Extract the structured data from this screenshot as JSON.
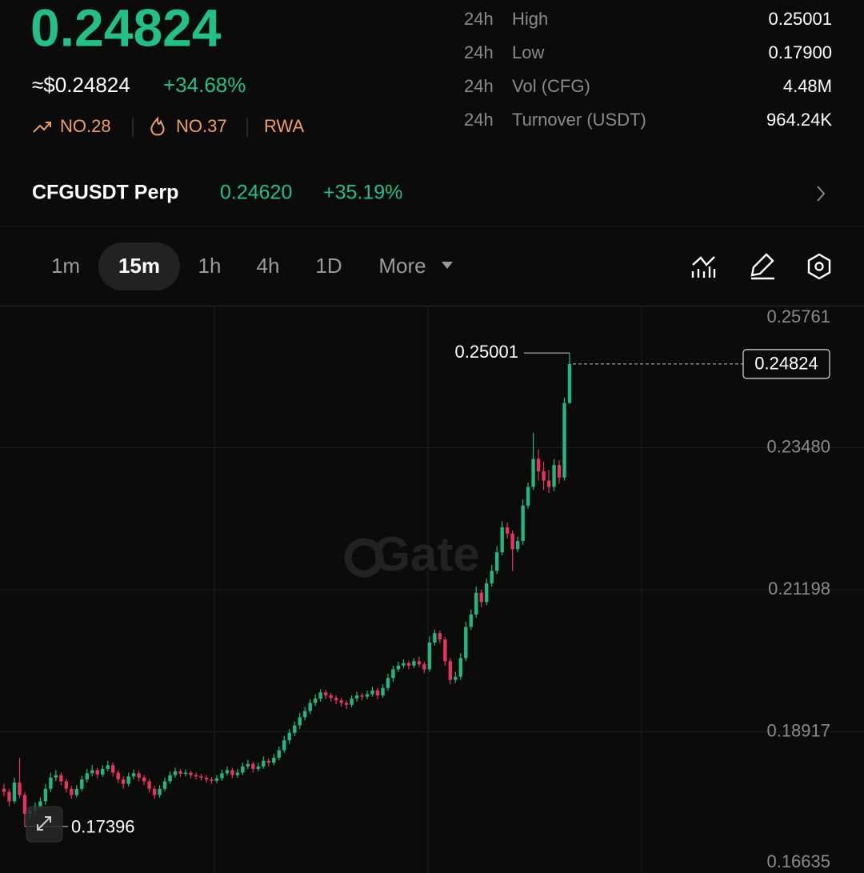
{
  "header": {
    "price": "0.24824",
    "usd_price": "≈$0.24824",
    "change": "+34.68%",
    "badges": [
      "NO.28",
      "NO.37",
      "RWA"
    ]
  },
  "stats": [
    {
      "period": "24h",
      "label": "High",
      "value": "0.25001"
    },
    {
      "period": "24h",
      "label": "Low",
      "value": "0.17900"
    },
    {
      "period": "24h",
      "label": "Vol (CFG)",
      "value": "4.48M"
    },
    {
      "period": "24h",
      "label": "Turnover (USDT)",
      "value": "964.24K"
    }
  ],
  "perp": {
    "symbol": "CFGUSDT Perp",
    "price": "0.24620",
    "change": "+35.19%"
  },
  "intervals": [
    "1m",
    "15m",
    "1h",
    "4h",
    "1D",
    "More"
  ],
  "active_interval": 1,
  "chart_data": {
    "type": "candlestick",
    "watermark": "Gate",
    "up_color": "#20b87f",
    "down_color": "#e8345c",
    "ylim": [
      0.16635,
      0.25761
    ],
    "yticks": [
      0.16635,
      0.18917,
      0.21198,
      {
        "value": 0.2348,
        "label": "0.23480"
      },
      0.25761
    ],
    "max_label": 0.25001,
    "min_label": 0.17396,
    "last_price": 0.24824,
    "candles": [
      [
        0.18,
        0.1808,
        0.1788,
        0.1795
      ],
      [
        0.1795,
        0.18,
        0.1772,
        0.178
      ],
      [
        0.178,
        0.1818,
        0.1776,
        0.181
      ],
      [
        0.181,
        0.185,
        0.1785,
        0.179
      ],
      [
        0.179,
        0.1795,
        0.17396,
        0.176
      ],
      [
        0.176,
        0.1772,
        0.1752,
        0.1765
      ],
      [
        0.1765,
        0.1778,
        0.1758,
        0.1772
      ],
      [
        0.1772,
        0.1786,
        0.1766,
        0.178
      ],
      [
        0.178,
        0.1808,
        0.1774,
        0.18
      ],
      [
        0.18,
        0.1826,
        0.1795,
        0.1818
      ],
      [
        0.1818,
        0.183,
        0.1812,
        0.1822
      ],
      [
        0.1822,
        0.1826,
        0.1806,
        0.1812
      ],
      [
        0.1812,
        0.1816,
        0.1794,
        0.18
      ],
      [
        0.18,
        0.1805,
        0.1784,
        0.179
      ],
      [
        0.179,
        0.1806,
        0.1786,
        0.18
      ],
      [
        0.18,
        0.1821,
        0.1796,
        0.1815
      ],
      [
        0.1815,
        0.1832,
        0.181,
        0.1825
      ],
      [
        0.1825,
        0.1838,
        0.182,
        0.183
      ],
      [
        0.183,
        0.1834,
        0.1817,
        0.1823
      ],
      [
        0.1823,
        0.1838,
        0.1819,
        0.1832
      ],
      [
        0.1832,
        0.1845,
        0.1828,
        0.1838
      ],
      [
        0.1838,
        0.1842,
        0.182,
        0.1826
      ],
      [
        0.1826,
        0.183,
        0.1809,
        0.1815
      ],
      [
        0.1815,
        0.182,
        0.18,
        0.1808
      ],
      [
        0.1808,
        0.1826,
        0.1804,
        0.182
      ],
      [
        0.182,
        0.1831,
        0.1815,
        0.1825
      ],
      [
        0.1825,
        0.1829,
        0.1812,
        0.1818
      ],
      [
        0.1818,
        0.1822,
        0.1806,
        0.1812
      ],
      [
        0.1812,
        0.1816,
        0.1794,
        0.18
      ],
      [
        0.18,
        0.1805,
        0.1784,
        0.179
      ],
      [
        0.179,
        0.1806,
        0.1786,
        0.18
      ],
      [
        0.18,
        0.1818,
        0.1796,
        0.1812
      ],
      [
        0.1812,
        0.1828,
        0.1808,
        0.1822
      ],
      [
        0.1822,
        0.1834,
        0.1818,
        0.1828
      ],
      [
        0.1828,
        0.1832,
        0.1819,
        0.1824
      ],
      [
        0.1824,
        0.1831,
        0.182,
        0.1826
      ],
      [
        0.1826,
        0.1829,
        0.1817,
        0.1822
      ],
      [
        0.1822,
        0.1826,
        0.1815,
        0.182
      ],
      [
        0.182,
        0.1824,
        0.1813,
        0.1818
      ],
      [
        0.1818,
        0.1822,
        0.181,
        0.1815
      ],
      [
        0.1815,
        0.1819,
        0.1808,
        0.1813
      ],
      [
        0.1813,
        0.1822,
        0.1809,
        0.1817
      ],
      [
        0.1817,
        0.1831,
        0.1813,
        0.1825
      ],
      [
        0.1825,
        0.1836,
        0.1821,
        0.183
      ],
      [
        0.183,
        0.1834,
        0.1817,
        0.1822
      ],
      [
        0.1822,
        0.1832,
        0.1818,
        0.1826
      ],
      [
        0.1826,
        0.1842,
        0.1822,
        0.1836
      ],
      [
        0.1836,
        0.1846,
        0.1832,
        0.184
      ],
      [
        0.184,
        0.1844,
        0.1826,
        0.1832
      ],
      [
        0.1832,
        0.1842,
        0.1828,
        0.1836
      ],
      [
        0.1836,
        0.1852,
        0.1832,
        0.1845
      ],
      [
        0.1845,
        0.1849,
        0.1836,
        0.1842
      ],
      [
        0.1842,
        0.1856,
        0.1838,
        0.185
      ],
      [
        0.185,
        0.1868,
        0.1846,
        0.1862
      ],
      [
        0.1862,
        0.1885,
        0.1858,
        0.1878
      ],
      [
        0.1878,
        0.1896,
        0.1872,
        0.189
      ],
      [
        0.189,
        0.1908,
        0.1885,
        0.1902
      ],
      [
        0.1902,
        0.1922,
        0.1896,
        0.1915
      ],
      [
        0.1915,
        0.1932,
        0.191,
        0.1925
      ],
      [
        0.1925,
        0.1944,
        0.192,
        0.1938
      ],
      [
        0.1938,
        0.1952,
        0.1933,
        0.1945
      ],
      [
        0.1945,
        0.196,
        0.194,
        0.1955
      ],
      [
        0.1955,
        0.1959,
        0.1944,
        0.195
      ],
      [
        0.195,
        0.1954,
        0.194,
        0.1946
      ],
      [
        0.1946,
        0.195,
        0.1936,
        0.1942
      ],
      [
        0.1942,
        0.1946,
        0.1932,
        0.1938
      ],
      [
        0.1938,
        0.1942,
        0.1928,
        0.1935
      ],
      [
        0.1935,
        0.195,
        0.1931,
        0.1945
      ],
      [
        0.1945,
        0.1956,
        0.194,
        0.195
      ],
      [
        0.195,
        0.1954,
        0.1942,
        0.1948
      ],
      [
        0.1948,
        0.1958,
        0.1944,
        0.1952
      ],
      [
        0.1952,
        0.1964,
        0.1948,
        0.1958
      ],
      [
        0.1958,
        0.1962,
        0.1944,
        0.195
      ],
      [
        0.195,
        0.1968,
        0.1946,
        0.1962
      ],
      [
        0.1962,
        0.1985,
        0.1958,
        0.1978
      ],
      [
        0.1978,
        0.1998,
        0.1972,
        0.1992
      ],
      [
        0.1992,
        0.2004,
        0.1988,
        0.1998
      ],
      [
        0.1998,
        0.2008,
        0.1994,
        0.2002
      ],
      [
        0.2002,
        0.2006,
        0.1992,
        0.1998
      ],
      [
        0.1998,
        0.201,
        0.1994,
        0.2005
      ],
      [
        0.2005,
        0.2012,
        0.1996,
        0.2
      ],
      [
        0.2,
        0.2004,
        0.1986,
        0.1992
      ],
      [
        0.1992,
        0.2045,
        0.1988,
        0.2035
      ],
      [
        0.2035,
        0.2056,
        0.203,
        0.205
      ],
      [
        0.205,
        0.2054,
        0.2034,
        0.204
      ],
      [
        0.204,
        0.2044,
        0.1998,
        0.2005
      ],
      [
        0.2005,
        0.201,
        0.1968,
        0.1975
      ],
      [
        0.1975,
        0.1988,
        0.197,
        0.198
      ],
      [
        0.198,
        0.2018,
        0.1975,
        0.201
      ],
      [
        0.201,
        0.2068,
        0.2005,
        0.206
      ],
      [
        0.206,
        0.2088,
        0.2055,
        0.208
      ],
      [
        0.208,
        0.2125,
        0.2075,
        0.2115
      ],
      [
        0.2115,
        0.212,
        0.2092,
        0.21
      ],
      [
        0.21,
        0.2138,
        0.2095,
        0.213
      ],
      [
        0.213,
        0.216,
        0.2125,
        0.215
      ],
      [
        0.215,
        0.219,
        0.2145,
        0.218
      ],
      [
        0.218,
        0.223,
        0.2175,
        0.222
      ],
      [
        0.222,
        0.2228,
        0.2202,
        0.221
      ],
      [
        0.221,
        0.2215,
        0.215,
        0.2185
      ],
      [
        0.2185,
        0.2205,
        0.218,
        0.2198
      ],
      [
        0.2198,
        0.2265,
        0.2192,
        0.2255
      ],
      [
        0.2255,
        0.2292,
        0.225,
        0.2285
      ],
      [
        0.2285,
        0.2372,
        0.228,
        0.233
      ],
      [
        0.233,
        0.2345,
        0.2295,
        0.231
      ],
      [
        0.231,
        0.2325,
        0.228,
        0.2295
      ],
      [
        0.2295,
        0.2312,
        0.2275,
        0.2285
      ],
      [
        0.2285,
        0.233,
        0.2278,
        0.232
      ],
      [
        0.232,
        0.2328,
        0.229,
        0.23
      ],
      [
        0.23,
        0.2428,
        0.2295,
        0.242
      ],
      [
        0.242,
        0.25001,
        0.2418,
        0.24824
      ]
    ]
  }
}
